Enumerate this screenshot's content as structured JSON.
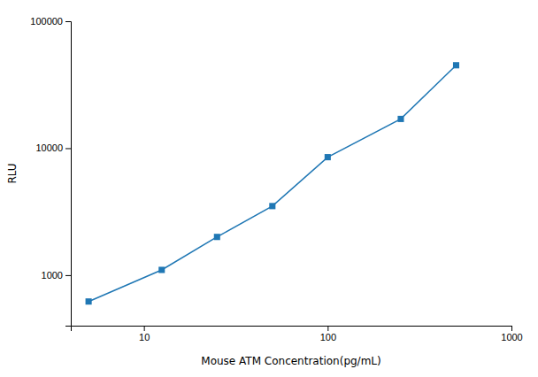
{
  "chart_data": {
    "type": "line",
    "x": [
      5,
      12.5,
      25,
      50,
      100,
      250,
      500
    ],
    "values": [
      620,
      1100,
      2000,
      3500,
      8500,
      17000,
      45000
    ],
    "xlabel": "Mouse ATM Concentration(pg/mL)",
    "ylabel": "RLU",
    "xlim": [
      4,
      1000
    ],
    "ylim": [
      400,
      100000
    ],
    "xticks": [
      10,
      100,
      1000
    ],
    "yticks": [
      1000,
      10000,
      100000
    ],
    "log": true,
    "marker": "square"
  }
}
